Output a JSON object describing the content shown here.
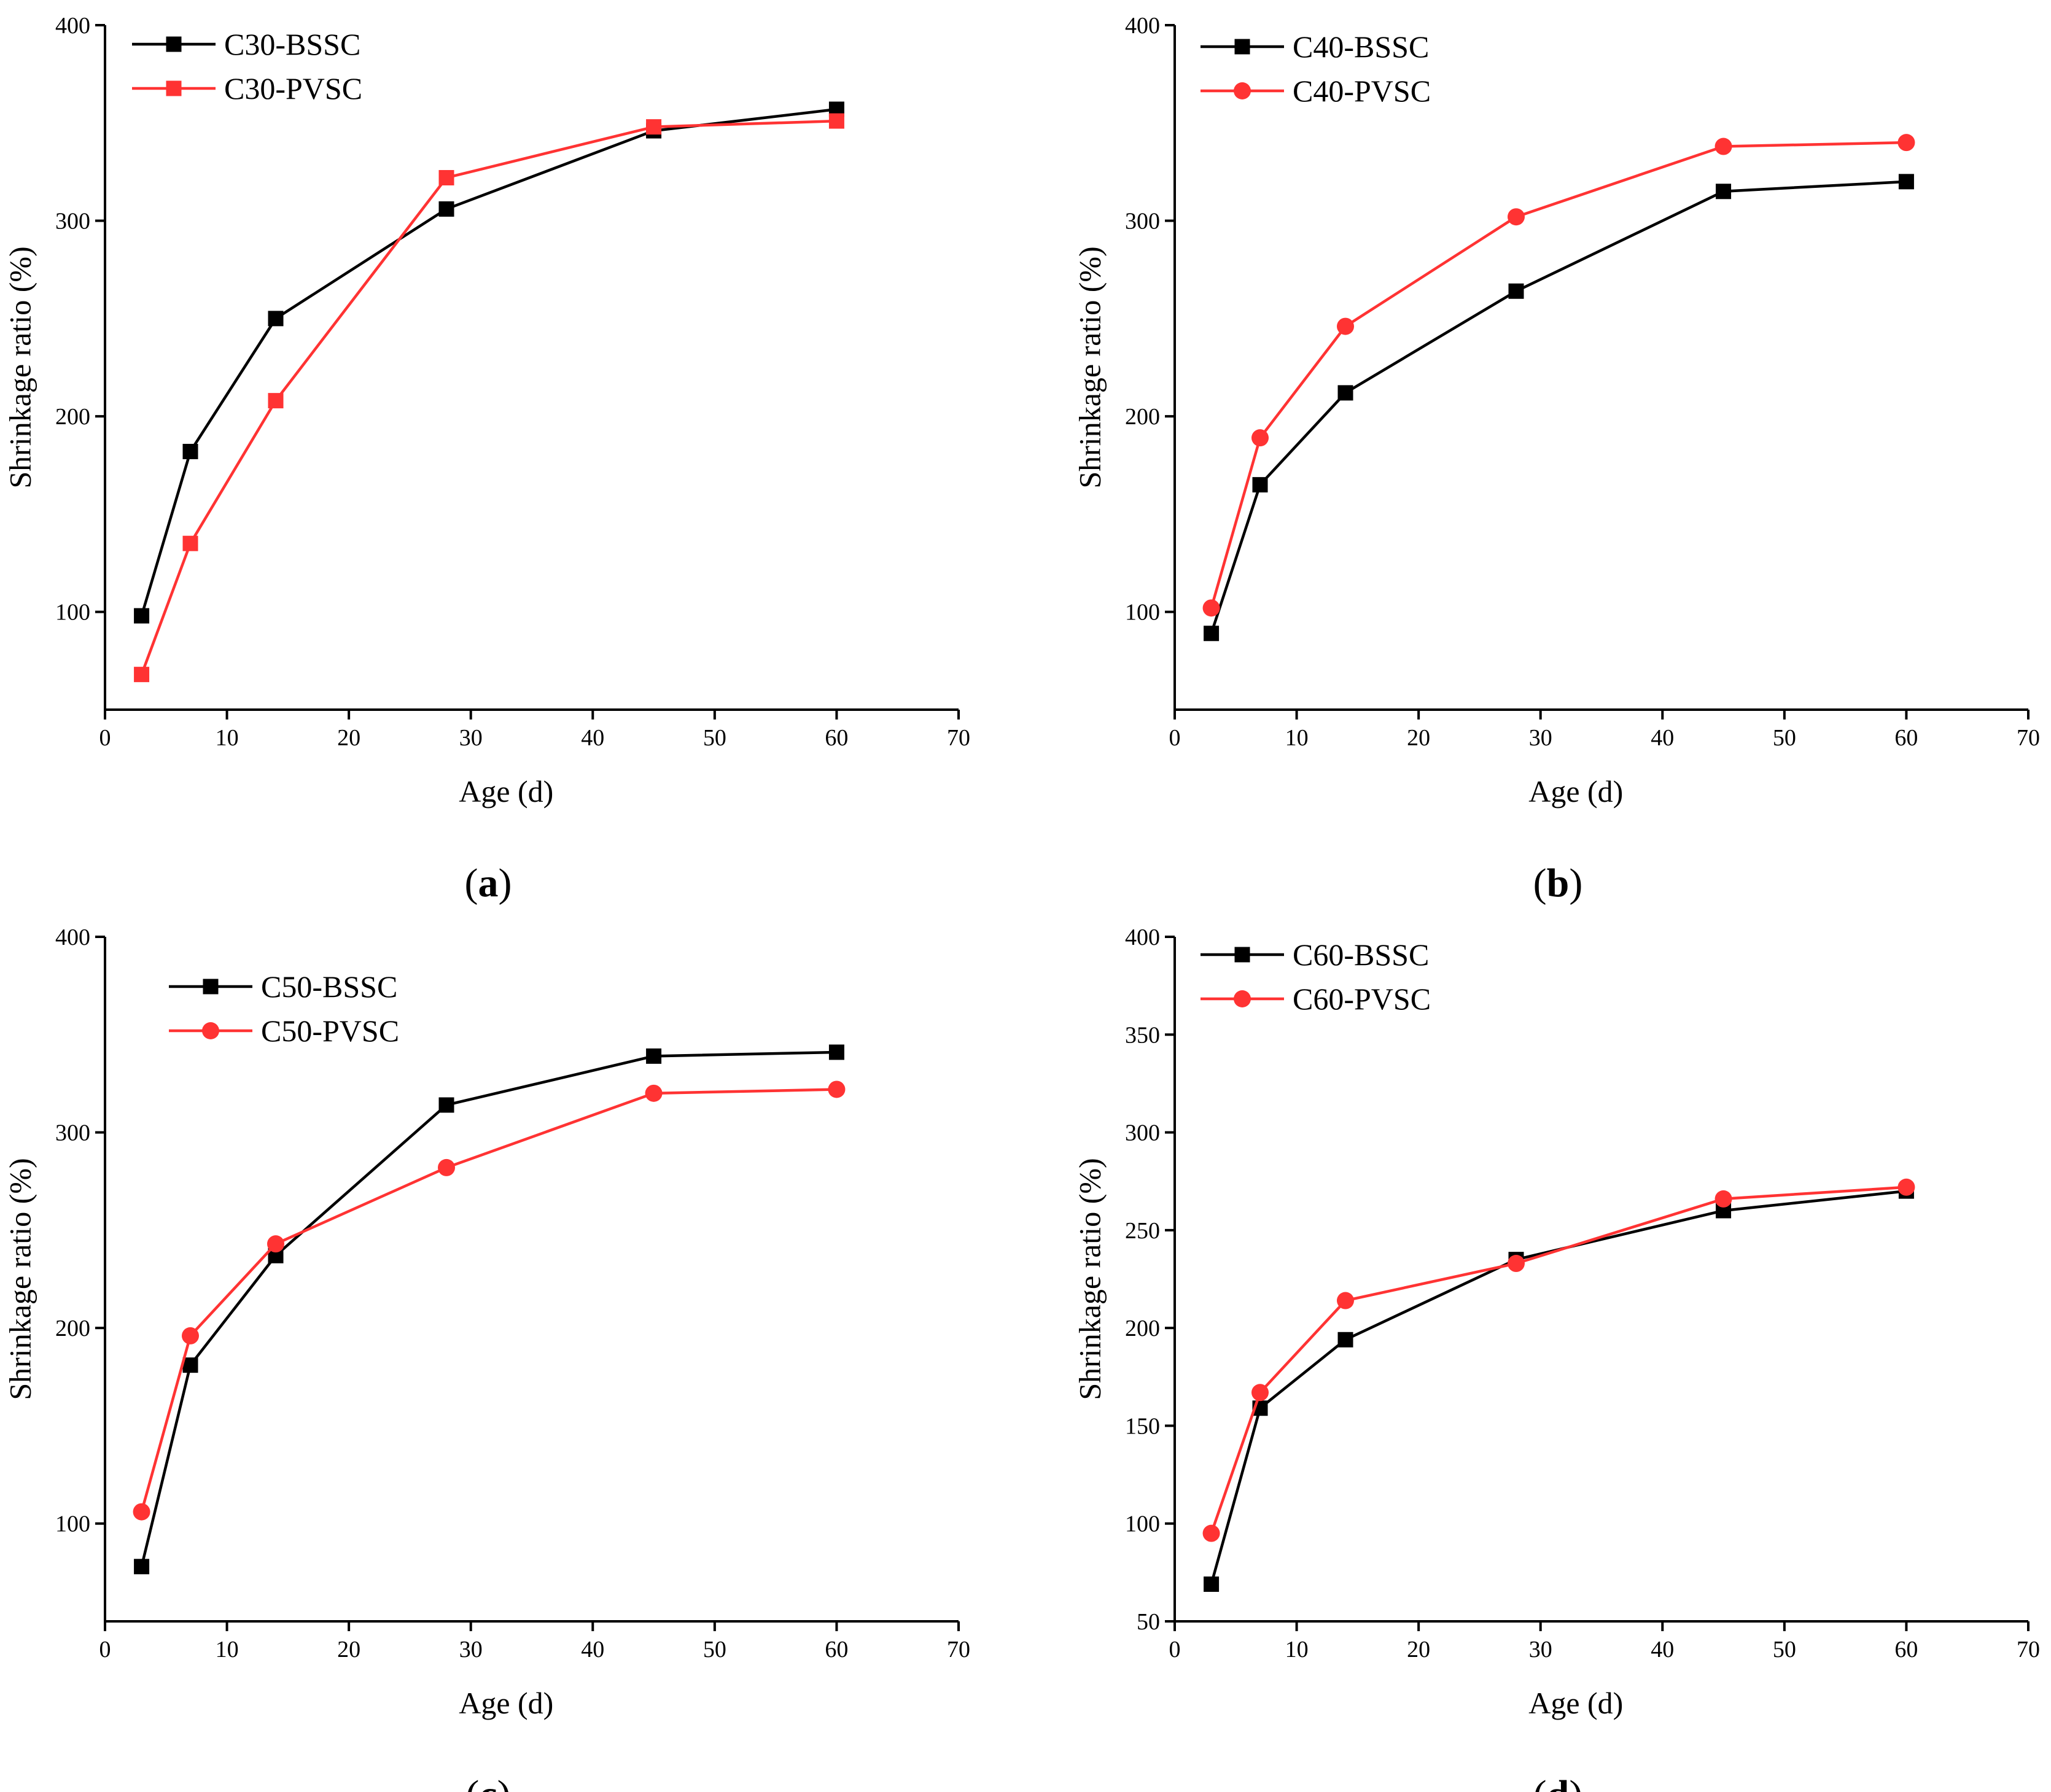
{
  "colors": {
    "bssc": "#000000",
    "pvsc": "#ff3333",
    "axis": "#000000"
  },
  "chart_data": [
    {
      "panel": "a",
      "caption": {
        "open": "(",
        "letter": "a",
        "close": ")"
      },
      "type": "line",
      "xlabel": "Age (d)",
      "ylabel": "Shrinkage ratio (%)",
      "xlim": [
        0,
        70
      ],
      "ylim": [
        50,
        400
      ],
      "xticks": [
        0,
        10,
        20,
        30,
        40,
        50,
        60,
        70
      ],
      "yticks": [
        100,
        200,
        300,
        400
      ],
      "legend_position": "top-left",
      "x": [
        3,
        7,
        14,
        28,
        45,
        60
      ],
      "series": [
        {
          "name": "C30-BSSC",
          "marker": "square",
          "color": "#000000",
          "values": [
            98,
            182,
            250,
            306,
            346,
            357
          ]
        },
        {
          "name": "C30-PVSC",
          "marker": "square",
          "color": "#ff3333",
          "values": [
            68,
            135,
            208,
            322,
            348,
            351
          ]
        }
      ]
    },
    {
      "panel": "b",
      "caption": {
        "open": "(",
        "letter": "b",
        "close": ")"
      },
      "type": "line",
      "xlabel": "Age (d)",
      "ylabel": "Shrinkage ratio (%)",
      "xlim": [
        0,
        70
      ],
      "ylim": [
        50,
        400
      ],
      "xticks": [
        0,
        10,
        20,
        30,
        40,
        50,
        60,
        70
      ],
      "yticks": [
        100,
        200,
        300,
        400
      ],
      "legend_position": "top-left",
      "x": [
        3,
        7,
        14,
        28,
        45,
        60
      ],
      "series": [
        {
          "name": "C40-BSSC",
          "marker": "square",
          "color": "#000000",
          "values": [
            89,
            165,
            212,
            264,
            315,
            320
          ]
        },
        {
          "name": "C40-PVSC",
          "marker": "circle",
          "color": "#ff3333",
          "values": [
            102,
            189,
            246,
            302,
            338,
            340
          ]
        }
      ]
    },
    {
      "panel": "c",
      "caption": {
        "open": "(",
        "letter": "c",
        "close": ")"
      },
      "type": "line",
      "xlabel": "Age (d)",
      "ylabel": "Shrinkage ratio (%)",
      "xlim": [
        0,
        70
      ],
      "ylim": [
        50,
        400
      ],
      "xticks": [
        0,
        10,
        20,
        30,
        40,
        50,
        60,
        70
      ],
      "yticks": [
        100,
        200,
        300,
        400
      ],
      "legend_position": "top-left",
      "x": [
        3,
        7,
        14,
        28,
        45,
        60
      ],
      "series": [
        {
          "name": "C50-BSSC",
          "marker": "square",
          "color": "#000000",
          "values": [
            78,
            181,
            237,
            314,
            339,
            341
          ]
        },
        {
          "name": "C50-PVSC",
          "marker": "circle",
          "color": "#ff3333",
          "values": [
            106,
            196,
            243,
            282,
            320,
            322
          ]
        }
      ]
    },
    {
      "panel": "d",
      "caption": {
        "open": "(",
        "letter": "d",
        "close": ")"
      },
      "type": "line",
      "xlabel": "Age (d)",
      "ylabel": "Shrinkage ratio (%)",
      "xlim": [
        0,
        70
      ],
      "ylim": [
        50,
        400
      ],
      "xticks": [
        0,
        10,
        20,
        30,
        40,
        50,
        60,
        70
      ],
      "yticks": [
        50,
        100,
        150,
        200,
        250,
        300,
        350,
        400
      ],
      "legend_position": "top-left",
      "x": [
        3,
        7,
        14,
        28,
        45,
        60
      ],
      "series": [
        {
          "name": "C60-BSSC",
          "marker": "square",
          "color": "#000000",
          "values": [
            69,
            159,
            194,
            235,
            260,
            270
          ]
        },
        {
          "name": "C60-PVSC",
          "marker": "circle",
          "color": "#ff3333",
          "values": [
            95,
            167,
            214,
            233,
            266,
            272
          ]
        }
      ]
    }
  ]
}
